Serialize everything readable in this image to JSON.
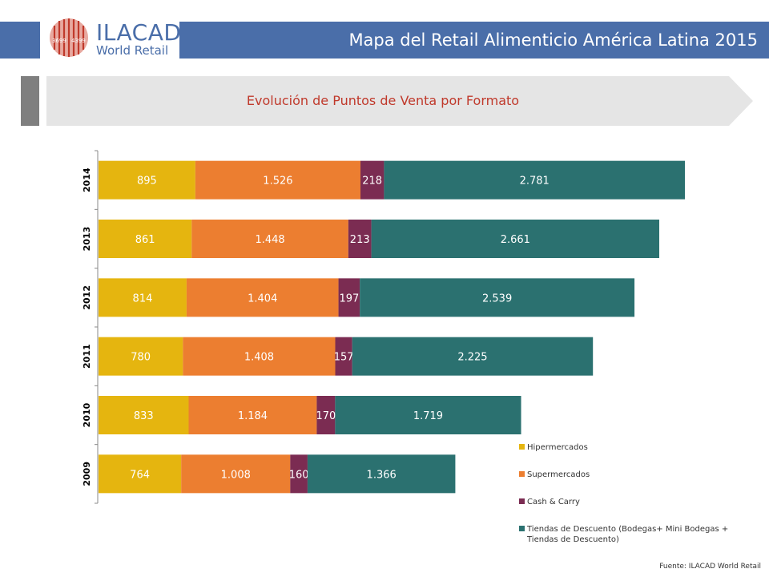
{
  "header": {
    "title": "Mapa del Retail Alimenticio América Latina 2015",
    "logo_text": "ILACAD",
    "logo_subtext": "World Retail",
    "logo_small_left": "3699",
    "logo_small_right": "4399"
  },
  "subtitle": "Evolución de Puntos de Venta por Formato",
  "source": "Fuente: ILACAD World Retail",
  "colors": {
    "header": "#4a6ea9",
    "Hipermercados": "#e5b50f",
    "Supermercados": "#ec7e30",
    "Cash & Carry": "#7b2c52",
    "Tiendas de Descuento": "#2b7170"
  },
  "chart_data": {
    "type": "bar",
    "orientation": "horizontal",
    "stacked": true,
    "title": "Evolución de Puntos de Venta por Formato",
    "categories": [
      "2014",
      "2013",
      "2012",
      "2011",
      "2010",
      "2009"
    ],
    "series": [
      {
        "name": "Hipermercados",
        "values": [
          895,
          861,
          814,
          780,
          833,
          764
        ],
        "labels": [
          "895",
          "861",
          "814",
          "780",
          "833",
          "764"
        ]
      },
      {
        "name": "Supermercados",
        "values": [
          1526,
          1448,
          1404,
          1408,
          1184,
          1008
        ],
        "labels": [
          "1.526",
          "1.448",
          "1.404",
          "1.408",
          "1.184",
          "1.008"
        ]
      },
      {
        "name": "Cash & Carry",
        "values": [
          218,
          213,
          197,
          157,
          170,
          160
        ],
        "labels": [
          "218",
          "213",
          "197",
          "157",
          "170",
          "160"
        ]
      },
      {
        "name": "Tiendas de Descuento (Bodegas+ Mini Bodegas + Tiendas de Descuento)",
        "values": [
          2781,
          2661,
          2539,
          2225,
          1719,
          1366
        ],
        "labels": [
          "2.781",
          "2.661",
          "2.539",
          "2.225",
          "1.719",
          "1.366"
        ]
      }
    ],
    "legend_position": "bottom-right",
    "grid": false
  }
}
